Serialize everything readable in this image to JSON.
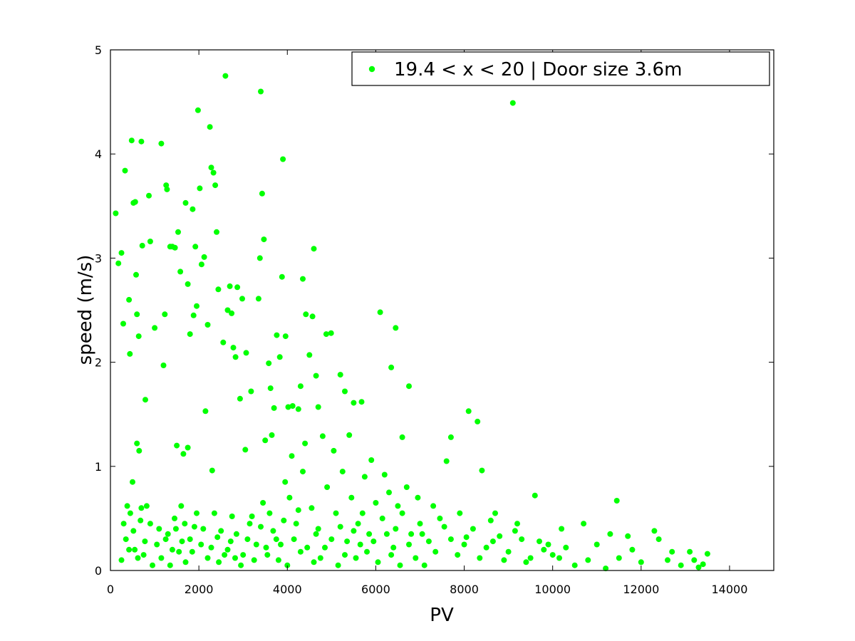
{
  "chart_data": {
    "type": "scatter",
    "title": "",
    "xlabel": "PV",
    "ylabel": "speed (m/s)",
    "xlim": [
      0,
      15000
    ],
    "ylim": [
      0,
      5
    ],
    "x_ticks": [
      0,
      2000,
      4000,
      6000,
      8000,
      10000,
      12000,
      14000
    ],
    "y_ticks": [
      0,
      1,
      2,
      3,
      4,
      5
    ],
    "grid": false,
    "legend_position": "top-right",
    "series": [
      {
        "name": "19.4 < x < 20 | Door size 3.6m",
        "color": "#00ff00",
        "marker": "filled-circle",
        "points": [
          [
            120,
            3.43
          ],
          [
            180,
            2.95
          ],
          [
            250,
            3.05
          ],
          [
            290,
            2.37
          ],
          [
            330,
            3.84
          ],
          [
            420,
            2.6
          ],
          [
            440,
            2.08
          ],
          [
            480,
            4.13
          ],
          [
            520,
            3.53
          ],
          [
            560,
            3.54
          ],
          [
            580,
            2.84
          ],
          [
            600,
            2.46
          ],
          [
            640,
            2.25
          ],
          [
            700,
            4.12
          ],
          [
            720,
            3.12
          ],
          [
            790,
            1.64
          ],
          [
            870,
            3.6
          ],
          [
            900,
            3.16
          ],
          [
            1000,
            2.33
          ],
          [
            1150,
            4.1
          ],
          [
            1230,
            2.46
          ],
          [
            1260,
            3.7
          ],
          [
            1280,
            3.66
          ],
          [
            1350,
            3.11
          ],
          [
            1400,
            3.11
          ],
          [
            1460,
            3.1
          ],
          [
            1530,
            3.25
          ],
          [
            1580,
            2.87
          ],
          [
            1700,
            3.53
          ],
          [
            1750,
            2.75
          ],
          [
            1800,
            2.27
          ],
          [
            1860,
            3.47
          ],
          [
            1880,
            2.45
          ],
          [
            1920,
            3.11
          ],
          [
            1950,
            2.54
          ],
          [
            1980,
            4.42
          ],
          [
            2020,
            3.67
          ],
          [
            2060,
            2.94
          ],
          [
            2120,
            3.01
          ],
          [
            2200,
            2.36
          ],
          [
            2250,
            4.26
          ],
          [
            2280,
            3.87
          ],
          [
            2330,
            3.82
          ],
          [
            2370,
            3.7
          ],
          [
            2400,
            3.25
          ],
          [
            2440,
            2.7
          ],
          [
            2550,
            2.19
          ],
          [
            2600,
            4.75
          ],
          [
            2650,
            2.5
          ],
          [
            2700,
            2.73
          ],
          [
            2740,
            2.47
          ],
          [
            2780,
            2.14
          ],
          [
            2830,
            2.05
          ],
          [
            2870,
            2.72
          ],
          [
            2930,
            1.65
          ],
          [
            2980,
            2.61
          ],
          [
            3070,
            2.09
          ],
          [
            3180,
            1.72
          ],
          [
            3350,
            2.61
          ],
          [
            3380,
            3.0
          ],
          [
            3400,
            4.6
          ],
          [
            3430,
            3.62
          ],
          [
            3470,
            3.18
          ],
          [
            3580,
            1.99
          ],
          [
            3620,
            1.75
          ],
          [
            3700,
            1.56
          ],
          [
            3760,
            2.26
          ],
          [
            3830,
            2.05
          ],
          [
            3880,
            2.82
          ],
          [
            3900,
            3.95
          ],
          [
            3960,
            2.25
          ],
          [
            4020,
            1.57
          ],
          [
            4120,
            1.58
          ],
          [
            4250,
            1.55
          ],
          [
            4300,
            1.77
          ],
          [
            4350,
            2.8
          ],
          [
            4420,
            2.46
          ],
          [
            4500,
            2.07
          ],
          [
            4570,
            2.44
          ],
          [
            4600,
            3.09
          ],
          [
            4650,
            1.87
          ],
          [
            4700,
            1.57
          ],
          [
            4880,
            2.27
          ],
          [
            4990,
            2.28
          ],
          [
            5200,
            1.88
          ],
          [
            5300,
            1.72
          ],
          [
            5500,
            1.61
          ],
          [
            5680,
            1.62
          ],
          [
            6100,
            2.48
          ],
          [
            6350,
            1.95
          ],
          [
            6450,
            2.33
          ],
          [
            6600,
            1.28
          ],
          [
            6750,
            1.77
          ],
          [
            7600,
            1.05
          ],
          [
            7700,
            1.28
          ],
          [
            8100,
            1.53
          ],
          [
            8300,
            1.43
          ],
          [
            8400,
            0.96
          ],
          [
            8700,
            0.55
          ],
          [
            9100,
            4.49
          ],
          [
            9600,
            0.72
          ],
          [
            10200,
            0.4
          ],
          [
            10700,
            0.45
          ],
          [
            11300,
            0.35
          ],
          [
            11450,
            0.67
          ],
          [
            11700,
            0.33
          ],
          [
            12300,
            0.38
          ],
          [
            12700,
            0.18
          ],
          [
            13200,
            0.1
          ],
          [
            13500,
            0.16
          ],
          [
            13400,
            0.06
          ],
          [
            1200,
            1.97
          ],
          [
            1500,
            1.2
          ],
          [
            1650,
            1.12
          ],
          [
            1750,
            1.18
          ],
          [
            2150,
            1.53
          ],
          [
            2300,
            0.96
          ],
          [
            3050,
            1.16
          ],
          [
            3500,
            1.25
          ],
          [
            3650,
            1.3
          ],
          [
            4100,
            1.1
          ],
          [
            4400,
            1.22
          ],
          [
            4800,
            1.29
          ],
          [
            5050,
            1.15
          ],
          [
            5400,
            1.3
          ],
          [
            5900,
            1.06
          ],
          [
            6200,
            0.92
          ],
          [
            6700,
            0.8
          ],
          [
            6950,
            0.7
          ],
          [
            7300,
            0.62
          ],
          [
            7900,
            0.55
          ],
          [
            8600,
            0.48
          ],
          [
            9300,
            0.3
          ],
          [
            9800,
            0.2
          ],
          [
            10500,
            0.05
          ],
          [
            11200,
            0.02
          ],
          [
            600,
            1.22
          ],
          [
            650,
            1.15
          ],
          [
            500,
            0.85
          ],
          [
            700,
            0.6
          ],
          [
            900,
            0.45
          ],
          [
            1100,
            0.4
          ],
          [
            1300,
            0.35
          ],
          [
            1450,
            0.5
          ],
          [
            1600,
            0.62
          ],
          [
            1800,
            0.3
          ],
          [
            2050,
            0.25
          ],
          [
            2350,
            0.55
          ],
          [
            2500,
            0.38
          ],
          [
            2650,
            0.2
          ],
          [
            2850,
            0.35
          ],
          [
            3000,
            0.15
          ],
          [
            3150,
            0.45
          ],
          [
            3300,
            0.25
          ],
          [
            3450,
            0.65
          ],
          [
            3600,
            0.55
          ],
          [
            3800,
            0.1
          ],
          [
            3950,
            0.85
          ],
          [
            4050,
            0.7
          ],
          [
            4200,
            0.45
          ],
          [
            4350,
            0.95
          ],
          [
            4550,
            0.6
          ],
          [
            4700,
            0.4
          ],
          [
            4900,
            0.8
          ],
          [
            5100,
            0.55
          ],
          [
            5250,
            0.95
          ],
          [
            5450,
            0.7
          ],
          [
            5600,
            0.45
          ],
          [
            5750,
            0.9
          ],
          [
            5850,
            0.35
          ],
          [
            6000,
            0.65
          ],
          [
            6150,
            0.5
          ],
          [
            6300,
            0.75
          ],
          [
            6450,
            0.4
          ],
          [
            6600,
            0.55
          ],
          [
            6800,
            0.35
          ],
          [
            7000,
            0.45
          ],
          [
            7200,
            0.28
          ],
          [
            7450,
            0.5
          ],
          [
            7700,
            0.3
          ],
          [
            8000,
            0.25
          ],
          [
            8200,
            0.4
          ],
          [
            8500,
            0.22
          ],
          [
            8800,
            0.33
          ],
          [
            9000,
            0.18
          ],
          [
            9200,
            0.45
          ],
          [
            9500,
            0.12
          ],
          [
            9700,
            0.28
          ],
          [
            10000,
            0.15
          ],
          [
            10300,
            0.22
          ],
          [
            10800,
            0.1
          ],
          [
            11000,
            0.25
          ],
          [
            11500,
            0.12
          ],
          [
            11800,
            0.2
          ],
          [
            12000,
            0.08
          ],
          [
            12400,
            0.3
          ],
          [
            12600,
            0.1
          ],
          [
            12900,
            0.05
          ],
          [
            13100,
            0.18
          ],
          [
            13300,
            0.03
          ],
          [
            250,
            0.1
          ],
          [
            350,
            0.3
          ],
          [
            450,
            0.55
          ],
          [
            550,
            0.2
          ],
          [
            750,
            0.15
          ],
          [
            950,
            0.05
          ],
          [
            1050,
            0.25
          ],
          [
            1150,
            0.12
          ],
          [
            1350,
            0.05
          ],
          [
            1550,
            0.18
          ],
          [
            1700,
            0.08
          ],
          [
            1900,
            0.42
          ],
          [
            2200,
            0.12
          ],
          [
            2450,
            0.08
          ],
          [
            2750,
            0.52
          ],
          [
            2950,
            0.05
          ],
          [
            3250,
            0.1
          ],
          [
            3550,
            0.15
          ],
          [
            3750,
            0.3
          ],
          [
            4000,
            0.05
          ],
          [
            4300,
            0.18
          ],
          [
            4600,
            0.08
          ],
          [
            4850,
            0.22
          ],
          [
            5150,
            0.05
          ],
          [
            5350,
            0.28
          ],
          [
            5550,
            0.12
          ],
          [
            5800,
            0.18
          ],
          [
            6050,
            0.08
          ],
          [
            6350,
            0.15
          ],
          [
            6550,
            0.05
          ],
          [
            6900,
            0.12
          ],
          [
            7100,
            0.05
          ],
          [
            300,
            0.45
          ],
          [
            380,
            0.62
          ],
          [
            420,
            0.2
          ],
          [
            520,
            0.38
          ],
          [
            620,
            0.12
          ],
          [
            680,
            0.48
          ],
          [
            780,
            0.28
          ],
          [
            820,
            0.62
          ],
          [
            1250,
            0.3
          ],
          [
            1400,
            0.2
          ],
          [
            1480,
            0.4
          ],
          [
            1620,
            0.28
          ],
          [
            1680,
            0.45
          ],
          [
            1850,
            0.18
          ],
          [
            1950,
            0.55
          ],
          [
            2100,
            0.4
          ],
          [
            2280,
            0.22
          ],
          [
            2420,
            0.32
          ],
          [
            2580,
            0.15
          ],
          [
            2720,
            0.28
          ],
          [
            2820,
            0.12
          ],
          [
            3100,
            0.3
          ],
          [
            3200,
            0.52
          ],
          [
            3400,
            0.42
          ],
          [
            3520,
            0.22
          ],
          [
            3680,
            0.38
          ],
          [
            3850,
            0.25
          ],
          [
            3920,
            0.48
          ],
          [
            4150,
            0.3
          ],
          [
            4250,
            0.58
          ],
          [
            4450,
            0.22
          ],
          [
            4650,
            0.35
          ],
          [
            4750,
            0.12
          ],
          [
            5000,
            0.3
          ],
          [
            5200,
            0.42
          ],
          [
            5300,
            0.15
          ],
          [
            5500,
            0.38
          ],
          [
            5650,
            0.25
          ],
          [
            5700,
            0.55
          ],
          [
            5950,
            0.28
          ],
          [
            6250,
            0.35
          ],
          [
            6400,
            0.22
          ],
          [
            6500,
            0.62
          ],
          [
            6750,
            0.25
          ],
          [
            7050,
            0.35
          ],
          [
            7350,
            0.18
          ],
          [
            7550,
            0.42
          ],
          [
            7850,
            0.15
          ],
          [
            8050,
            0.32
          ],
          [
            8350,
            0.12
          ],
          [
            8650,
            0.28
          ],
          [
            8900,
            0.1
          ],
          [
            9150,
            0.38
          ],
          [
            9400,
            0.08
          ],
          [
            9900,
            0.25
          ],
          [
            10150,
            0.12
          ]
        ]
      }
    ]
  }
}
